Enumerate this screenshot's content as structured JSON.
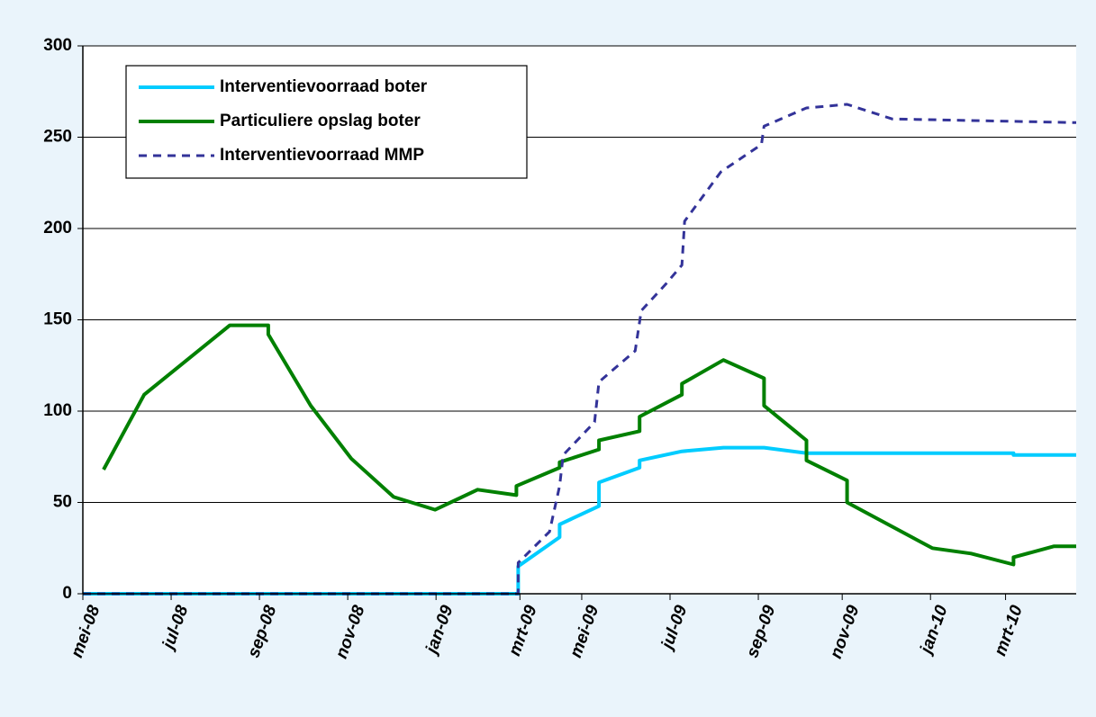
{
  "chart_data": {
    "type": "line",
    "xlim": [
      0,
      22.5
    ],
    "xticks": [
      {
        "value": 0,
        "label": "mei-08"
      },
      {
        "value": 2,
        "label": "jul-08"
      },
      {
        "value": 4,
        "label": "sep-08"
      },
      {
        "value": 6,
        "label": "nov-08"
      },
      {
        "value": 8,
        "label": "jan-09"
      },
      {
        "value": 9.9,
        "label": "mrt-09"
      },
      {
        "value": 11.3,
        "label": "mei-09"
      },
      {
        "value": 13.3,
        "label": "jul-09"
      },
      {
        "value": 15.3,
        "label": "sep-09"
      },
      {
        "value": 17.2,
        "label": "nov-09"
      },
      {
        "value": 19.2,
        "label": "jan-10"
      },
      {
        "value": 20.9,
        "label": "mrt-10"
      }
    ],
    "ylim": [
      0,
      300
    ],
    "yticks": [
      0,
      50,
      100,
      150,
      200,
      250,
      300
    ],
    "grid": true,
    "legend": "top-left",
    "series": [
      {
        "name": "Interventievoorraad boter",
        "color": "#00ccff",
        "dash": false,
        "x": [
          0,
          9.86,
          9.86,
          10.8,
          10.8,
          11.69,
          11.69,
          12.61,
          12.61,
          13.57,
          14.51,
          15.43,
          16.39,
          21.08,
          21.08,
          22.5
        ],
        "values": [
          0,
          0,
          15,
          31,
          38,
          48,
          61,
          69,
          73,
          78,
          80,
          80,
          77,
          77,
          76,
          76
        ]
      },
      {
        "name": "Particuliere opslag boter",
        "color": "#008000",
        "dash": false,
        "x": [
          0.47,
          1.39,
          3.33,
          4.2,
          4.2,
          5.16,
          6.08,
          7.04,
          7.98,
          8.94,
          9.82,
          9.82,
          10.8,
          10.8,
          11.69,
          11.69,
          12.61,
          12.61,
          13.57,
          13.57,
          14.51,
          15.43,
          15.43,
          16.39,
          16.39,
          17.31,
          17.31,
          19.24,
          20.12,
          21.08,
          21.08,
          22.0,
          22.5
        ],
        "values": [
          68,
          109,
          147,
          147,
          142,
          103,
          74,
          53,
          46,
          57,
          54,
          59,
          69,
          72,
          79,
          84,
          89,
          97,
          109,
          115,
          128,
          118,
          103,
          84,
          73,
          62,
          50,
          25,
          22,
          16,
          20,
          26,
          26
        ]
      },
      {
        "name": "Interventievoorraad MMP",
        "color": "#333399",
        "dash": true,
        "x": [
          0,
          9.86,
          9.86,
          10.57,
          10.8,
          10.88,
          11.59,
          11.69,
          12.51,
          12.65,
          13.22,
          13.57,
          13.63,
          14.45,
          15.37,
          15.43,
          16.39,
          17.31,
          18.33,
          22.5
        ],
        "values": [
          0,
          0,
          17,
          34,
          59,
          76,
          94,
          116,
          133,
          155,
          170,
          180,
          204,
          231,
          246,
          256,
          266,
          268,
          260,
          258
        ]
      }
    ]
  }
}
